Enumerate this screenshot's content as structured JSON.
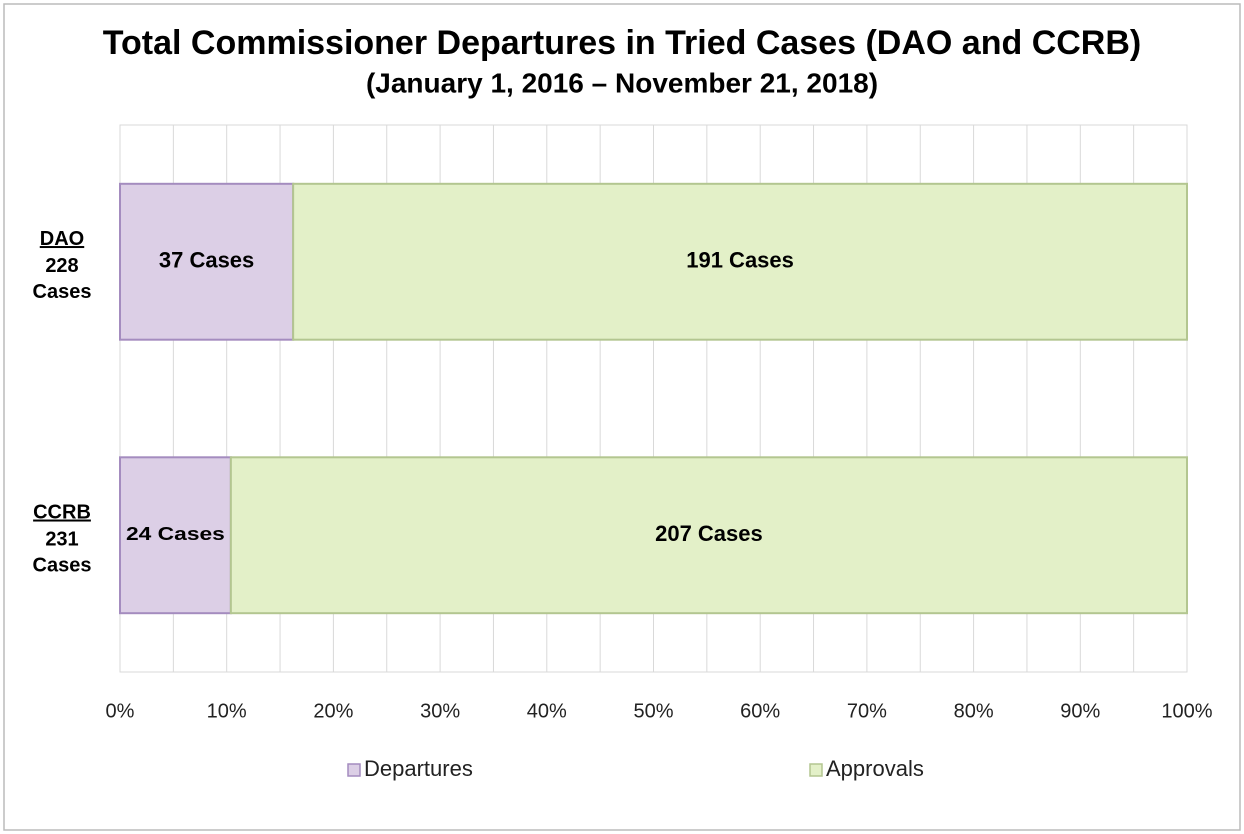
{
  "chart_data": {
    "type": "bar",
    "orientation": "horizontal",
    "stacked": "percent",
    "title": "Total Commissioner Departures in Tried Cases (DAO and CCRB)",
    "subtitle": "(January 1, 2016 – November 21, 2018)",
    "categories": [
      "DAO",
      "CCRB"
    ],
    "category_sublabels": [
      "228 Cases",
      "231 Cases"
    ],
    "series": [
      {
        "name": "Departures",
        "color": "#dccfe6",
        "edge_color": "#a48cbf",
        "values": [
          37,
          24
        ],
        "value_labels": [
          "37 Cases",
          "24 Cases"
        ]
      },
      {
        "name": "Approvals",
        "color": "#e3f0c8",
        "edge_color": "#b3c690",
        "values": [
          191,
          207
        ],
        "value_labels": [
          "191 Cases",
          "207 Cases"
        ]
      }
    ],
    "xlim": [
      0,
      100
    ],
    "xticks": [
      {
        "value": 0,
        "label": "0%"
      },
      {
        "value": 10,
        "label": "10%"
      },
      {
        "value": 20,
        "label": "20%"
      },
      {
        "value": 30,
        "label": "30%"
      },
      {
        "value": 40,
        "label": "40%"
      },
      {
        "value": 50,
        "label": "50%"
      },
      {
        "value": 60,
        "label": "60%"
      },
      {
        "value": 70,
        "label": "70%"
      },
      {
        "value": 80,
        "label": "80%"
      },
      {
        "value": 90,
        "label": "90%"
      },
      {
        "value": 100,
        "label": "100%"
      }
    ],
    "minor_xticks": [
      5,
      15,
      25,
      35,
      45,
      55,
      65,
      75,
      85,
      95
    ],
    "grid": true,
    "legend": "bottom"
  }
}
